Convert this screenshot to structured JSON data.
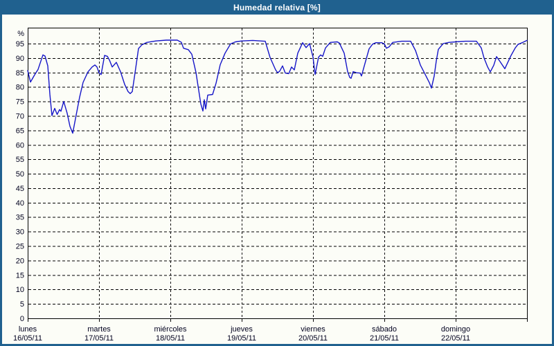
{
  "header": {
    "title": "Humedad relativa [%]"
  },
  "colors": {
    "titlebar_bg": "#20618f",
    "window_border": "#20618f",
    "panel_bg": "#fcfdf7",
    "line": "#1515c8",
    "grid": "#000000",
    "frame": "#000000",
    "label_text": "#00001e",
    "title_text": "#ffffff"
  },
  "chart_data": {
    "type": "line",
    "title": "Humedad relativa [%]",
    "legend": null,
    "grid": "dashed",
    "y_axis": {
      "unit_label": "%",
      "min": 0,
      "max": 100.5,
      "tick_step": 5,
      "ticks": [
        0,
        5,
        10,
        15,
        20,
        25,
        30,
        35,
        40,
        45,
        50,
        55,
        60,
        65,
        70,
        75,
        80,
        85,
        90,
        95
      ]
    },
    "x_axis": {
      "min_day": 0,
      "max_day": 7,
      "days": [
        {
          "label": "lunes",
          "date": "16/05/11"
        },
        {
          "label": "martes",
          "date": "17/05/11"
        },
        {
          "label": "miércoles",
          "date": "18/05/11"
        },
        {
          "label": "jueves",
          "date": "19/05/11"
        },
        {
          "label": "viernes",
          "date": "20/05/11"
        },
        {
          "label": "sábado",
          "date": "21/05/11"
        },
        {
          "label": "domingo",
          "date": "22/05/11"
        }
      ]
    },
    "series": [
      {
        "name": "Humedad relativa",
        "color": "#1515c8",
        "points": [
          [
            0.0,
            85.7
          ],
          [
            0.039,
            81.7
          ],
          [
            0.097,
            84.2
          ],
          [
            0.146,
            86.1
          ],
          [
            0.214,
            91.1
          ],
          [
            0.243,
            90.7
          ],
          [
            0.282,
            87.3
          ],
          [
            0.311,
            77.5
          ],
          [
            0.34,
            70.1
          ],
          [
            0.379,
            72.6
          ],
          [
            0.413,
            70.5
          ],
          [
            0.447,
            72.2
          ],
          [
            0.466,
            71.6
          ],
          [
            0.505,
            75.0
          ],
          [
            0.553,
            70.9
          ],
          [
            0.592,
            66.4
          ],
          [
            0.631,
            64.0
          ],
          [
            0.68,
            70.3
          ],
          [
            0.728,
            76.5
          ],
          [
            0.777,
            81.6
          ],
          [
            0.845,
            85.2
          ],
          [
            0.903,
            86.9
          ],
          [
            0.942,
            87.6
          ],
          [
            0.971,
            86.9
          ],
          [
            1.0,
            84.9
          ],
          [
            1.029,
            84.3
          ],
          [
            1.078,
            90.9
          ],
          [
            1.117,
            90.6
          ],
          [
            1.146,
            89.3
          ],
          [
            1.184,
            86.9
          ],
          [
            1.243,
            88.5
          ],
          [
            1.301,
            85.3
          ],
          [
            1.359,
            80.9
          ],
          [
            1.408,
            78.4
          ],
          [
            1.437,
            77.7
          ],
          [
            1.466,
            78.4
          ],
          [
            1.505,
            84.9
          ],
          [
            1.553,
            93.3
          ],
          [
            1.602,
            94.6
          ],
          [
            1.67,
            95.4
          ],
          [
            1.796,
            95.9
          ],
          [
            1.942,
            96.2
          ],
          [
            2.097,
            96.2
          ],
          [
            2.155,
            95.4
          ],
          [
            2.184,
            93.4
          ],
          [
            2.252,
            92.9
          ],
          [
            2.301,
            91.3
          ],
          [
            2.359,
            85.0
          ],
          [
            2.427,
            74.1
          ],
          [
            2.456,
            71.7
          ],
          [
            2.476,
            75.6
          ],
          [
            2.495,
            72.4
          ],
          [
            2.524,
            77.2
          ],
          [
            2.592,
            77.4
          ],
          [
            2.641,
            81.3
          ],
          [
            2.699,
            87.7
          ],
          [
            2.767,
            91.7
          ],
          [
            2.845,
            94.9
          ],
          [
            2.913,
            95.6
          ],
          [
            3.0,
            95.9
          ],
          [
            3.155,
            96.1
          ],
          [
            3.33,
            95.8
          ],
          [
            3.398,
            90.2
          ],
          [
            3.476,
            85.9
          ],
          [
            3.505,
            84.9
          ],
          [
            3.534,
            85.5
          ],
          [
            3.573,
            87.3
          ],
          [
            3.612,
            84.8
          ],
          [
            3.66,
            84.6
          ],
          [
            3.699,
            86.9
          ],
          [
            3.738,
            85.9
          ],
          [
            3.786,
            91.7
          ],
          [
            3.854,
            95.3
          ],
          [
            3.903,
            93.6
          ],
          [
            3.951,
            95.0
          ],
          [
            4.0,
            90.3
          ],
          [
            4.029,
            84.3
          ],
          [
            4.078,
            90.3
          ],
          [
            4.107,
            91.1
          ],
          [
            4.136,
            90.6
          ],
          [
            4.175,
            93.5
          ],
          [
            4.243,
            95.4
          ],
          [
            4.34,
            95.6
          ],
          [
            4.369,
            95.2
          ],
          [
            4.437,
            91.7
          ],
          [
            4.485,
            85.3
          ],
          [
            4.515,
            83.3
          ],
          [
            4.534,
            83.0
          ],
          [
            4.563,
            85.3
          ],
          [
            4.612,
            84.9
          ],
          [
            4.66,
            84.8
          ],
          [
            4.68,
            83.8
          ],
          [
            4.728,
            88.1
          ],
          [
            4.786,
            93.2
          ],
          [
            4.835,
            94.8
          ],
          [
            4.883,
            95.3
          ],
          [
            4.961,
            95.3
          ],
          [
            5.0,
            94.9
          ],
          [
            5.029,
            93.4
          ],
          [
            5.068,
            93.9
          ],
          [
            5.117,
            95.4
          ],
          [
            5.243,
            95.8
          ],
          [
            5.369,
            95.8
          ],
          [
            5.437,
            92.6
          ],
          [
            5.505,
            87.6
          ],
          [
            5.563,
            84.8
          ],
          [
            5.631,
            81.5
          ],
          [
            5.66,
            79.6
          ],
          [
            5.699,
            83.8
          ],
          [
            5.728,
            89.0
          ],
          [
            5.757,
            93.0
          ],
          [
            5.825,
            95.0
          ],
          [
            5.902,
            95.4
          ],
          [
            6.0,
            95.6
          ],
          [
            6.136,
            95.8
          ],
          [
            6.291,
            95.8
          ],
          [
            6.359,
            93.5
          ],
          [
            6.398,
            90.0
          ],
          [
            6.447,
            87.0
          ],
          [
            6.485,
            85.2
          ],
          [
            6.534,
            87.5
          ],
          [
            6.573,
            90.5
          ],
          [
            6.621,
            88.8
          ],
          [
            6.689,
            86.3
          ],
          [
            6.777,
            90.9
          ],
          [
            6.835,
            93.5
          ],
          [
            6.874,
            94.7
          ],
          [
            6.942,
            95.4
          ],
          [
            7.0,
            96.1
          ]
        ]
      }
    ]
  }
}
